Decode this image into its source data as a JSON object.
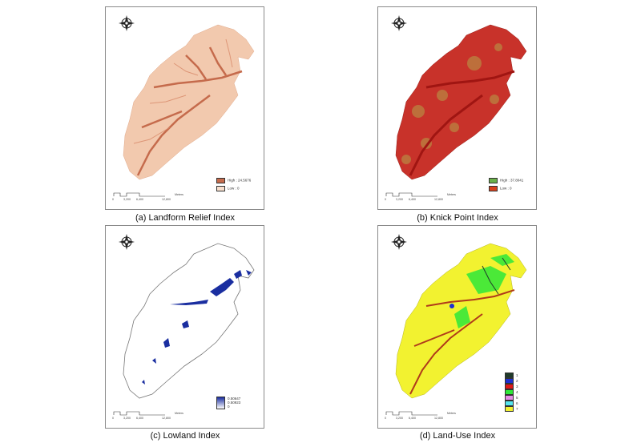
{
  "panels": {
    "a": {
      "caption": "(a) Landform Relief Index",
      "legend_high": "High : 24.5676",
      "legend_low": "Low : 0",
      "colors": {
        "fill": "#f2c9ae",
        "dark": "#c56b4c",
        "light": "#f8dfcd"
      }
    },
    "b": {
      "caption": "(b) Knick Point Index",
      "legend_high": "High : 37.8041",
      "legend_low": "Low : 0",
      "colors": {
        "fill": "#c8322a",
        "dark": "#b01e1a",
        "speck": "#b5a24a"
      }
    },
    "c": {
      "caption": "(c) Lowland Index",
      "legend_values": [
        "0.50647",
        "0.50923",
        "0"
      ],
      "colors": {
        "outline": "#777777",
        "blue": "#1a2ea0"
      }
    },
    "d": {
      "caption": "(d) Land-Use Index",
      "legend": [
        {
          "label": "1",
          "color": "#1f3b2a"
        },
        {
          "label": "2",
          "color": "#1e2fd0"
        },
        {
          "label": "3",
          "color": "#e01818"
        },
        {
          "label": "4",
          "color": "#2ee83a"
        },
        {
          "label": "5",
          "color": "#e68ce8"
        },
        {
          "label": "6",
          "color": "#54e6ee"
        },
        {
          "label": "7",
          "color": "#f2f230"
        }
      ],
      "colors": {
        "fill": "#f2f230",
        "river": "#b03a1a",
        "green": "#2ee83a"
      }
    }
  },
  "scale_bar": {
    "ticks": [
      "0",
      "3,200",
      "6,400",
      "12,800"
    ],
    "unit": "Meters"
  },
  "compass": {
    "letters": [
      "N",
      "E",
      "S",
      "W"
    ]
  }
}
